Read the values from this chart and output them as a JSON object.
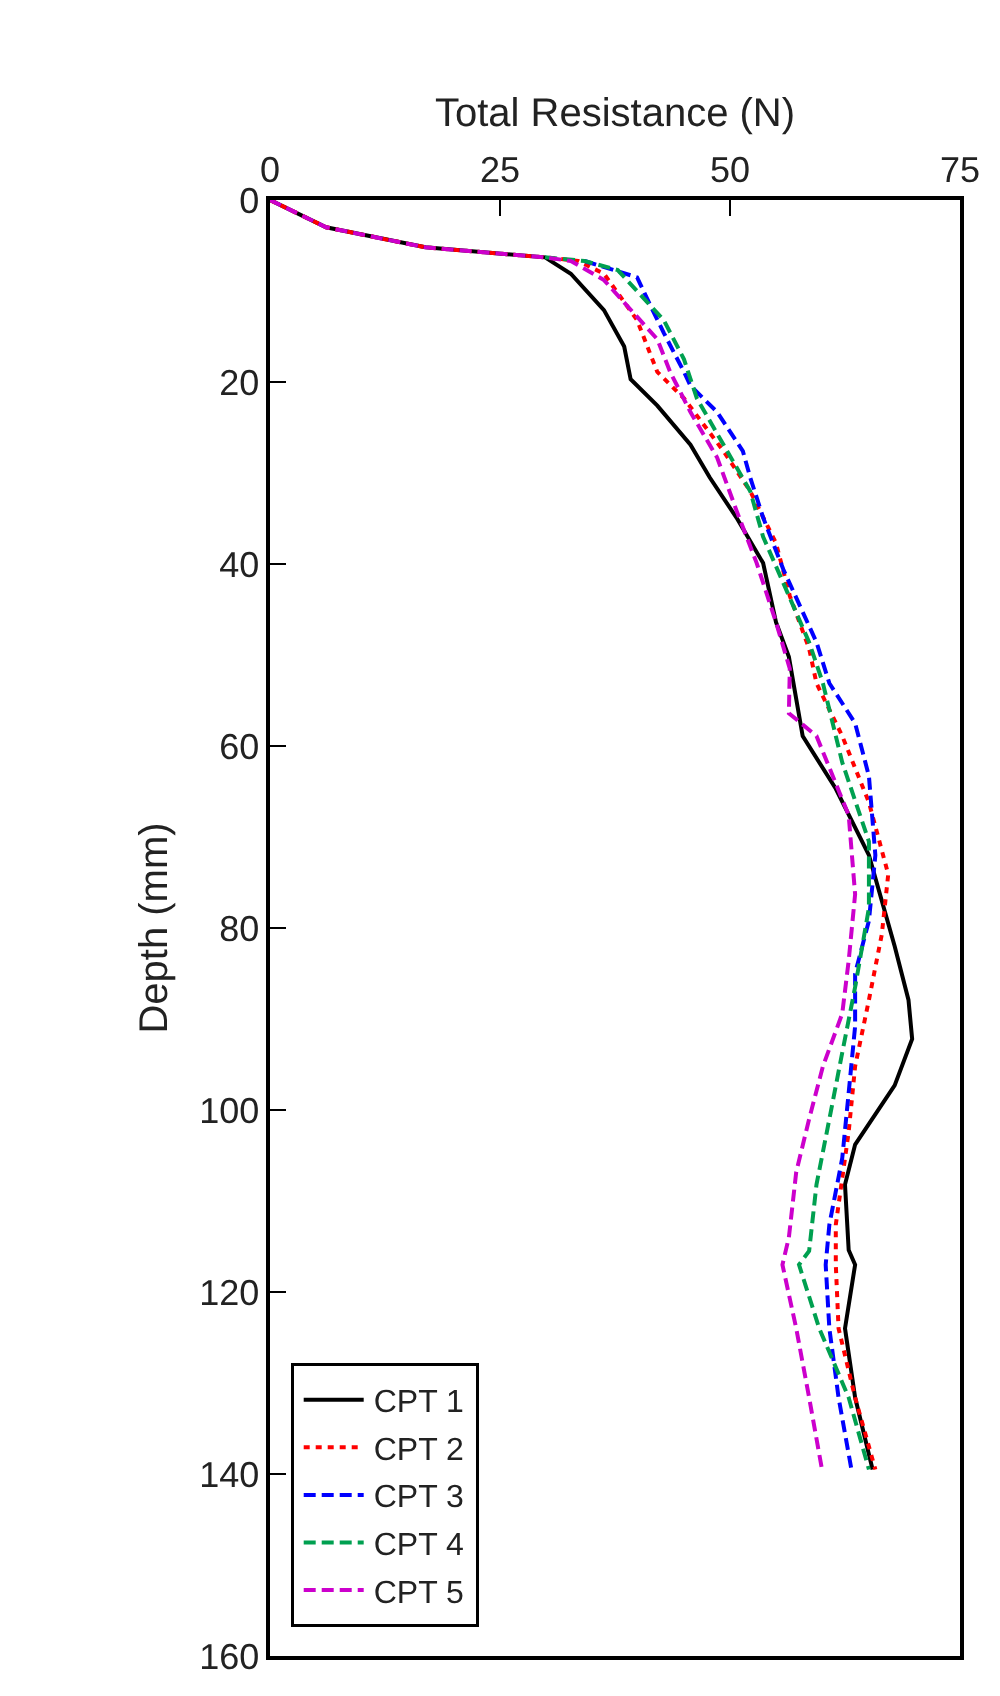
{
  "chart_data": {
    "type": "line",
    "xlabel": "Total Resistance (N)",
    "ylabel": "Depth (mm)",
    "xlim": [
      0,
      75
    ],
    "xticks": [
      0,
      25,
      50,
      75
    ],
    "ylim": [
      160,
      0
    ],
    "yticks": [
      0,
      20,
      40,
      60,
      80,
      100,
      120,
      140,
      160
    ],
    "grid": false,
    "legend": "bottom left",
    "marker": "none",
    "series": [
      {
        "name": "CPT 1",
        "color": "#000000",
        "line_style": "solid",
        "x": [
          0,
          6.1,
          16.9,
          29.9,
          32.7,
          36.3,
          38.5,
          39.2,
          42.1,
          45.7,
          47.8,
          50.7,
          53.6,
          55,
          56.4,
          57.9,
          61.5,
          65.1,
          67.9,
          69.4,
          69.8,
          67.9,
          63.6,
          62.5,
          62.9,
          63.6,
          62.5,
          63.6,
          65.5
        ],
        "values": [
          0,
          3,
          5.2,
          6.3,
          8.1,
          12.1,
          16.1,
          19.7,
          22.6,
          26.9,
          30.5,
          34.9,
          39.9,
          46.4,
          50.2,
          58.9,
          64.7,
          72,
          82,
          87.9,
          92.2,
          97.3,
          103.8,
          108.2,
          115.4,
          117,
          124,
          131.6,
          139.5
        ]
      },
      {
        "name": "CPT 2",
        "color": "#ff0000",
        "line_style": "dotted",
        "x": [
          0,
          6.1,
          16.9,
          29.9,
          33.5,
          36.3,
          39.9,
          42.1,
          45,
          49.3,
          52.2,
          55,
          56.5,
          58.6,
          59.4,
          62.2,
          65.1,
          67.2,
          66.5,
          65.1,
          63.6,
          62.9,
          61.5,
          61.5,
          61.8,
          63.6,
          65.8
        ],
        "values": [
          0,
          3,
          5.2,
          6.3,
          6.7,
          8.1,
          13.2,
          18.9,
          21.8,
          27.6,
          32,
          37.7,
          43.5,
          49.3,
          53.1,
          58.9,
          66.2,
          74.1,
          80.7,
          87.9,
          95.2,
          102.4,
          112.6,
          117,
          124,
          131.6,
          139.5
        ]
      },
      {
        "name": "CPT 3",
        "color": "#0000ff",
        "line_style": "dashed",
        "x": [
          34.2,
          39.9,
          41.4,
          42.8,
          45,
          45.7,
          48.6,
          51.4,
          52.2,
          53.6,
          55.8,
          59.4,
          60.8,
          63.6,
          65.1,
          65.8,
          65.1,
          63.6,
          63.6,
          62.9,
          62.2,
          60.8,
          60.4,
          60.8,
          61.8,
          63.2
        ],
        "values": [
          6.7,
          8.5,
          11.7,
          14.6,
          18.9,
          20.4,
          23.3,
          27.6,
          30.5,
          34.9,
          40.6,
          48.6,
          53.1,
          57.5,
          63.3,
          72,
          79.2,
          85,
          90.8,
          98.1,
          105.3,
          112.6,
          117,
          124,
          131.6,
          139.5
        ]
      },
      {
        "name": "CPT 4",
        "color": "#00a050",
        "line_style": "dashed",
        "x": [
          29.9,
          34.2,
          37.8,
          42.8,
          45,
          46.4,
          49.3,
          52.2,
          53.6,
          55.8,
          58.6,
          60.1,
          62.2,
          65.1,
          65.1,
          63.6,
          62.2,
          60.8,
          59.4,
          58.6,
          57.5,
          59.7,
          62.9,
          65.1
        ],
        "values": [
          6.3,
          6.7,
          7.7,
          13.2,
          17.5,
          21.8,
          26.9,
          32,
          37,
          42.1,
          48.6,
          53.1,
          61.8,
          70.5,
          77.8,
          86.5,
          93.7,
          101,
          108.2,
          115.5,
          117,
          124,
          131.6,
          139.5
        ]
      },
      {
        "name": "CPT 5",
        "color": "#cc00cc",
        "line_style": "dashed",
        "x": [
          0,
          6.1,
          16.9,
          29.9,
          32.7,
          36.3,
          42.1,
          43.5,
          45.7,
          48.6,
          50.7,
          52.9,
          55,
          56.5,
          56.4,
          59.4,
          62.9,
          63.6,
          62.9,
          62.2,
          60.1,
          58.6,
          57.2,
          56.4,
          55.7,
          57.2,
          58.6,
          60
        ],
        "values": [
          0,
          3,
          5.2,
          6.3,
          6.7,
          8.8,
          15.3,
          18.9,
          23.3,
          28.3,
          34.1,
          39.9,
          46.4,
          51.5,
          56.4,
          58.9,
          67.6,
          76.3,
          83.6,
          89.4,
          95.2,
          101,
          106.8,
          114,
          117,
          124,
          131.6,
          139.5
        ]
      }
    ]
  }
}
